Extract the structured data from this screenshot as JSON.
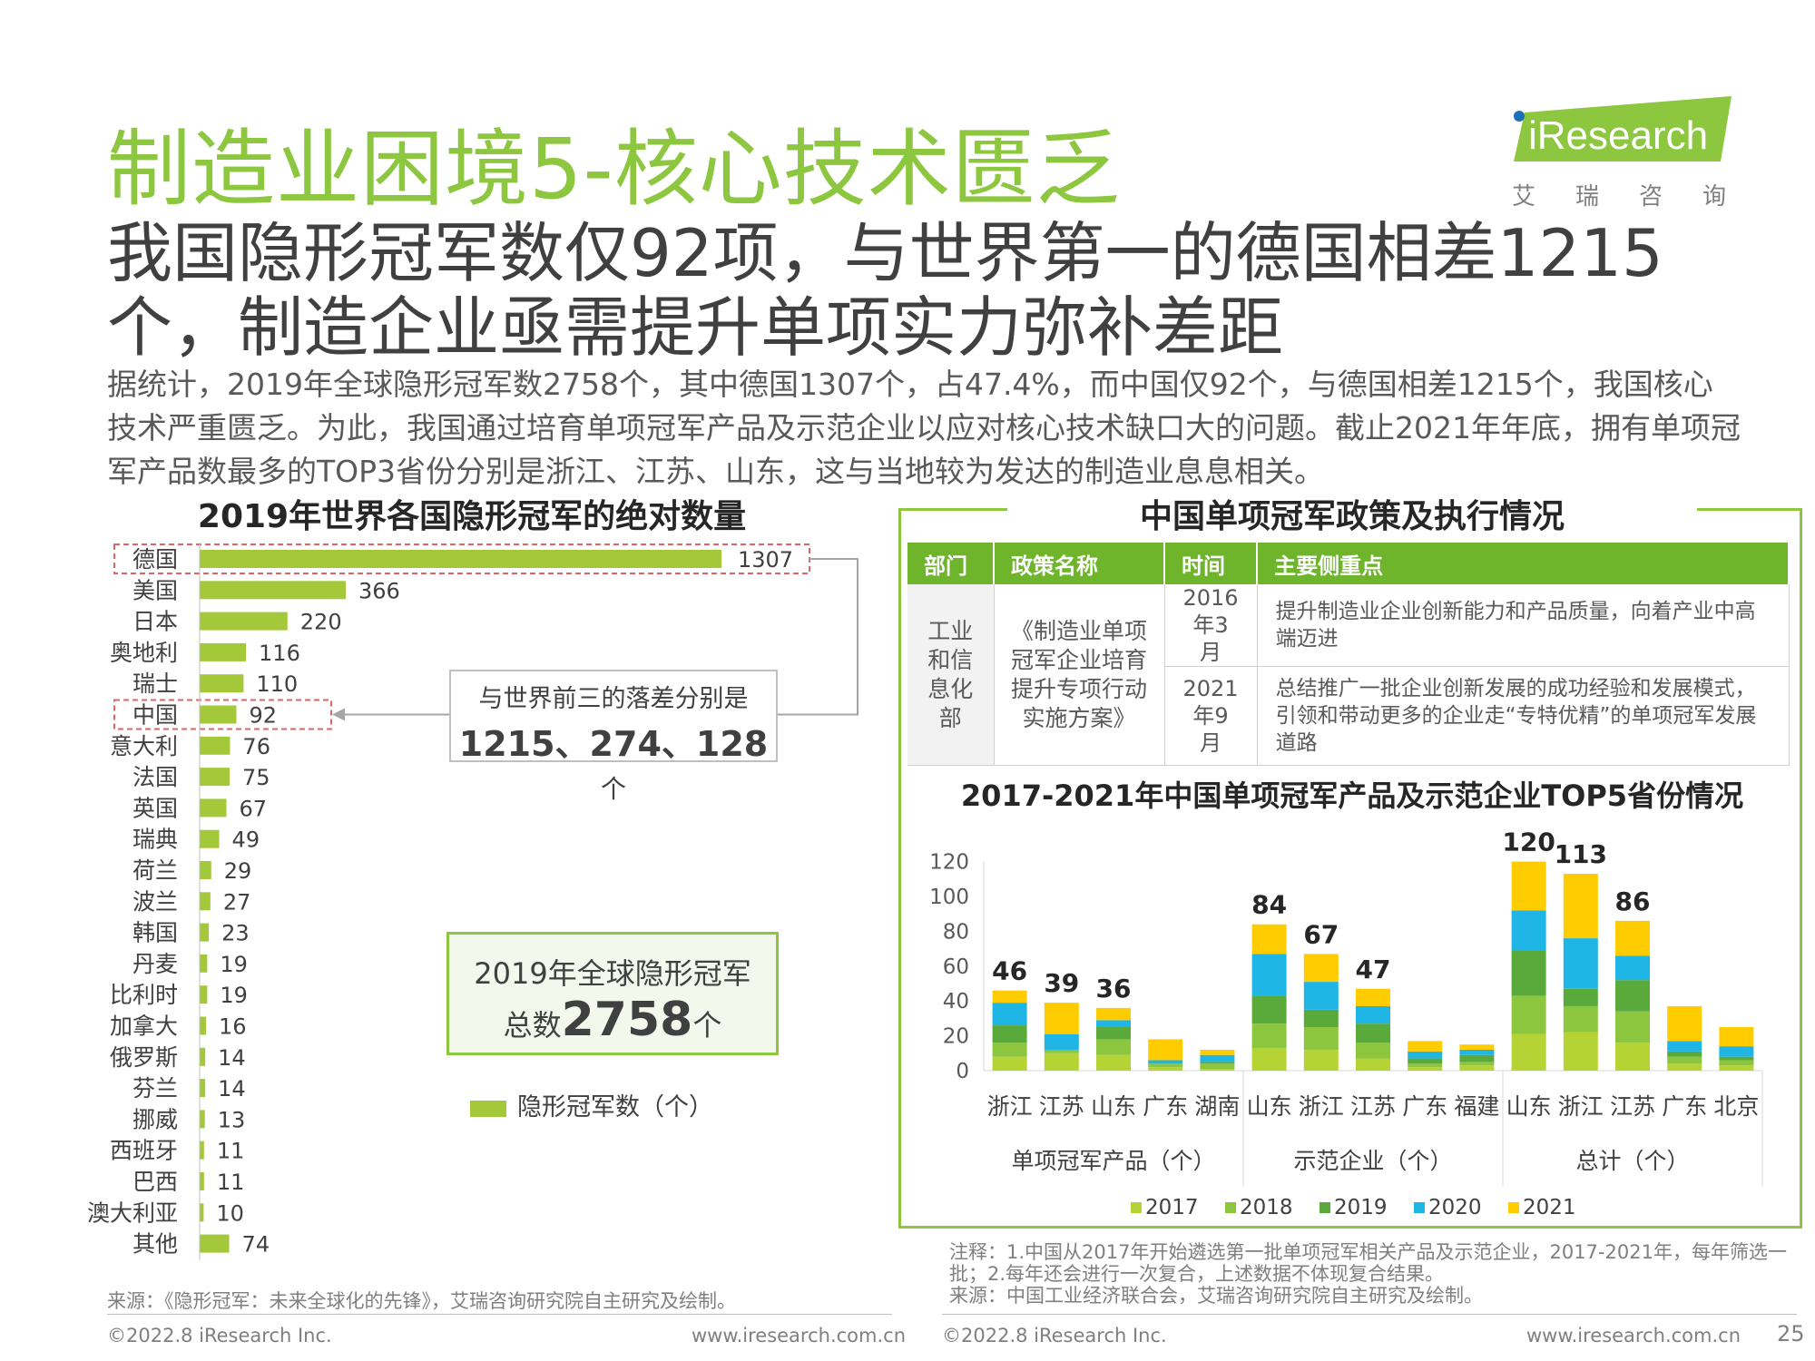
{
  "header": {
    "title": "制造业困境5-核心技术匮乏",
    "subtitle": "我国隐形冠军数仅92项，与世界第一的德国相差1215个，制造企业亟需提升单项实力弥补差距",
    "body": "据统计，2019年全球隐形冠军数2758个，其中德国1307个，占47.4%，而中国仅92个，与德国相差1215个，我国核心技术严重匮乏。为此，我国通过培育单项冠军产品及示范企业以应对核心技术缺口大的问题。截止2021年年底，拥有单项冠军产品数最多的TOP3省份分别是浙江、江苏、山东，这与当地较为发达的制造业息息相关。"
  },
  "logo": {
    "wordmark": "iResearch",
    "cn": "艾瑞咨询"
  },
  "left": {
    "title": "2019年世界各国隐形冠军的绝对数量",
    "callout_gap_line1": "与世界前三的落差分别是",
    "callout_gap_line2": "1215、274、128",
    "callout_gap_unit": "个",
    "callout_total_line1": "2019年全球隐形冠军",
    "callout_total_prefix": "总数",
    "callout_total_value": "2758",
    "callout_total_unit": "个",
    "legend": "隐形冠军数（个）",
    "source": "来源：《隐形冠军：未来全球化的先锋》，艾瑞咨询研究院自主研究及绘制。"
  },
  "right": {
    "title": "中国单项冠军政策及执行情况",
    "table": {
      "headers": [
        "部门",
        "政策名称",
        "时间",
        "主要侧重点"
      ],
      "department": "工业和信息化部",
      "policy": "《制造业单项冠军企业培育提升专项行动实施方案》",
      "rows": [
        {
          "time": "2016年3月",
          "focus": "提升制造业企业创新能力和产品质量，向着产业中高端迈进"
        },
        {
          "time": "2021年9月",
          "focus": "总结推广一批企业创新发展的成功经验和发展模式，引领和带动更多的企业走“专特优精”的单项冠军发展道路"
        }
      ]
    },
    "chart_title": "2017-2021年中国单项冠军产品及示范企业TOP5省份情况",
    "note": "注释：1.中国从2017年开始遴选第一批单项冠军相关产品及示范企业，2017-2021年，每年筛选一批；2.每年还会进行一次复合，上述数据不体现复合结果。",
    "source": "来源：中国工业经济联合会，艾瑞咨询研究院自主研究及绘制。"
  },
  "footer": {
    "copyright": "©2022.8 iResearch Inc.",
    "url": "www.iresearch.com.cn",
    "page": "25"
  },
  "colors": {
    "brand_green": "#8dc63f",
    "bar_green": "#a3c93a",
    "y2017": "#b5d334",
    "y2018": "#8cc63f",
    "y2019": "#5aaa3b",
    "y2020": "#1fb6e6",
    "y2021": "#ffcc00",
    "highlight_border": "#e06666"
  },
  "chart_data": [
    {
      "type": "bar",
      "orientation": "horizontal",
      "title": "2019年世界各国隐形冠军的绝对数量",
      "categories": [
        "德国",
        "美国",
        "日本",
        "奥地利",
        "瑞士",
        "中国",
        "意大利",
        "法国",
        "英国",
        "瑞典",
        "荷兰",
        "波兰",
        "韩国",
        "丹麦",
        "比利时",
        "加拿大",
        "俄罗斯",
        "芬兰",
        "挪威",
        "西班牙",
        "巴西",
        "澳大利亚",
        "其他"
      ],
      "series": [
        {
          "name": "隐形冠军数（个）",
          "values": [
            1307,
            366,
            220,
            116,
            110,
            92,
            76,
            75,
            67,
            49,
            29,
            27,
            23,
            19,
            19,
            16,
            14,
            14,
            13,
            11,
            11,
            10,
            74
          ]
        }
      ],
      "highlighted": [
        "德国",
        "中国"
      ],
      "xlim": [
        0,
        1307
      ]
    },
    {
      "type": "bar",
      "stacked": true,
      "title": "2017-2021年中国单项冠军产品及示范企业TOP5省份情况",
      "groups": [
        {
          "label": "单项冠军产品（个）",
          "categories": [
            "浙江",
            "江苏",
            "山东",
            "广东",
            "湖南"
          ]
        },
        {
          "label": "示范企业（个）",
          "categories": [
            "山东",
            "浙江",
            "江苏",
            "广东",
            "福建"
          ]
        },
        {
          "label": "总计（个）",
          "categories": [
            "山东",
            "浙江",
            "江苏",
            "广东",
            "北京"
          ]
        }
      ],
      "series": [
        {
          "name": "2017",
          "values": [
            8,
            10,
            9,
            2,
            1,
            13,
            12,
            7,
            2,
            3,
            21,
            22,
            16,
            4,
            3
          ]
        },
        {
          "name": "2018",
          "values": [
            8,
            2,
            9,
            2,
            3,
            14,
            13,
            9,
            2,
            2,
            22,
            15,
            18,
            4,
            3
          ]
        },
        {
          "name": "2019",
          "values": [
            10,
            0,
            7,
            0,
            1,
            16,
            10,
            11,
            3,
            4,
            26,
            10,
            18,
            3,
            2
          ]
        },
        {
          "name": "2020",
          "values": [
            13,
            9,
            4,
            2,
            4,
            24,
            16,
            10,
            4,
            3,
            23,
            29,
            14,
            6,
            6
          ]
        },
        {
          "name": "2021",
          "values": [
            7,
            18,
            7,
            12,
            3,
            17,
            16,
            10,
            6,
            3,
            28,
            37,
            20,
            20,
            11
          ]
        }
      ],
      "totals_labeled": [
        46,
        39,
        36,
        null,
        null,
        84,
        67,
        47,
        null,
        null,
        120,
        113,
        86,
        null,
        null
      ],
      "yticks": [
        0,
        20,
        40,
        60,
        80,
        100,
        120
      ],
      "ylim": [
        0,
        120
      ],
      "legend": [
        "2017",
        "2018",
        "2019",
        "2020",
        "2021"
      ],
      "legend_position": "bottom"
    }
  ]
}
